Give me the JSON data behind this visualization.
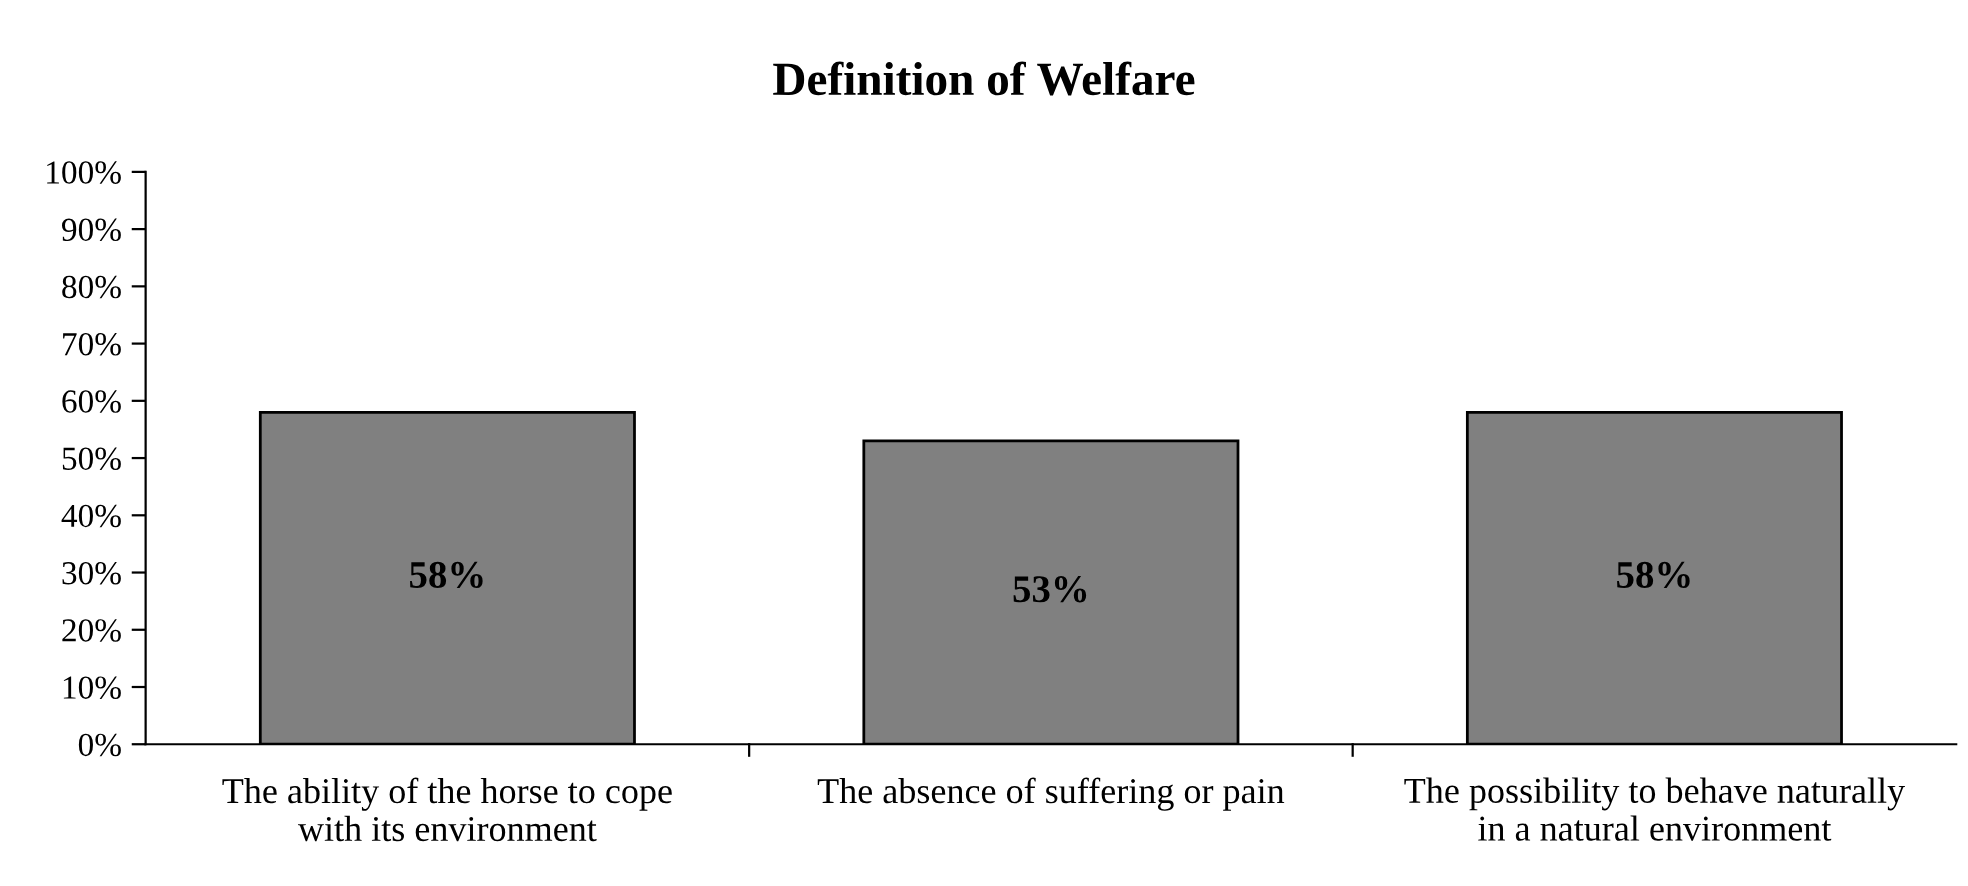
{
  "chart_data": {
    "type": "bar",
    "title": "Definition of Welfare",
    "categories": [
      "The ability of the horse to cope\nwith its environment",
      "The absence of suffering or pain",
      "The possibility to behave naturally\nin a natural environment"
    ],
    "values": [
      58,
      53,
      58
    ],
    "color": "#808080",
    "data_labels": true,
    "value_labels": [
      "58%",
      "53%",
      "58%"
    ],
    "ylim": [
      0,
      100
    ],
    "yticks": [
      {
        "value": 0,
        "label": "0%"
      },
      {
        "value": 10,
        "label": "10%"
      },
      {
        "value": 20,
        "label": "20%"
      },
      {
        "value": 30,
        "label": "30%"
      },
      {
        "value": 40,
        "label": "40%"
      },
      {
        "value": 50,
        "label": "50%"
      },
      {
        "value": 60,
        "label": "60%"
      },
      {
        "value": 70,
        "label": "70%"
      },
      {
        "value": 80,
        "label": "80%"
      },
      {
        "value": 90,
        "label": "90%"
      },
      {
        "value": 100,
        "label": "100%"
      }
    ],
    "grid": false,
    "legend": false
  }
}
